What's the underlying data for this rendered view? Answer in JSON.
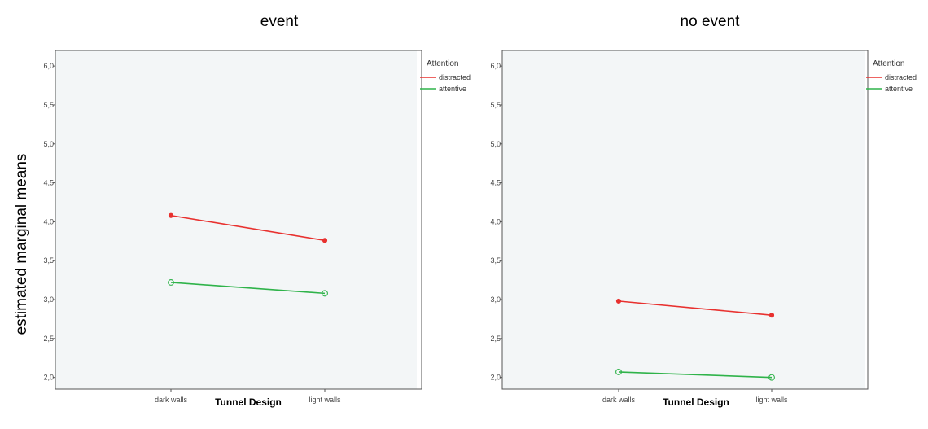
{
  "ylabel": "estimated marginal means",
  "colors": {
    "distracted": "#e8312f",
    "attentive": "#2fb34a",
    "plot_bg": "#f3f6f7"
  },
  "chart_data": [
    {
      "type": "line",
      "title": "event",
      "xlabel": "Tunnel Design",
      "categories": [
        "dark walls",
        "light walls"
      ],
      "ylim": [
        1.85,
        6.2
      ],
      "yticks": [
        "2,0",
        "2,5",
        "3,0",
        "3,5",
        "4,0",
        "4,5",
        "5,0",
        "5,5",
        "6,0"
      ],
      "legend": {
        "title": "Attention",
        "position": "top-right"
      },
      "series": [
        {
          "name": "distracted",
          "values": [
            4.08,
            3.76
          ],
          "color": "#e8312f"
        },
        {
          "name": "attentive",
          "values": [
            3.22,
            3.08
          ],
          "color": "#2fb34a"
        }
      ]
    },
    {
      "type": "line",
      "title": "no event",
      "xlabel": "Tunnel Design",
      "categories": [
        "dark walls",
        "light walls"
      ],
      "ylim": [
        1.85,
        6.2
      ],
      "yticks": [
        "2,0",
        "2,5",
        "3,0",
        "3,5",
        "4,0",
        "4,5",
        "5,0",
        "5,5",
        "6,0"
      ],
      "legend": {
        "title": "Attention",
        "position": "top-right"
      },
      "series": [
        {
          "name": "distracted",
          "values": [
            2.98,
            2.8
          ],
          "color": "#e8312f"
        },
        {
          "name": "attentive",
          "values": [
            2.07,
            2.0
          ],
          "color": "#2fb34a"
        }
      ]
    }
  ]
}
